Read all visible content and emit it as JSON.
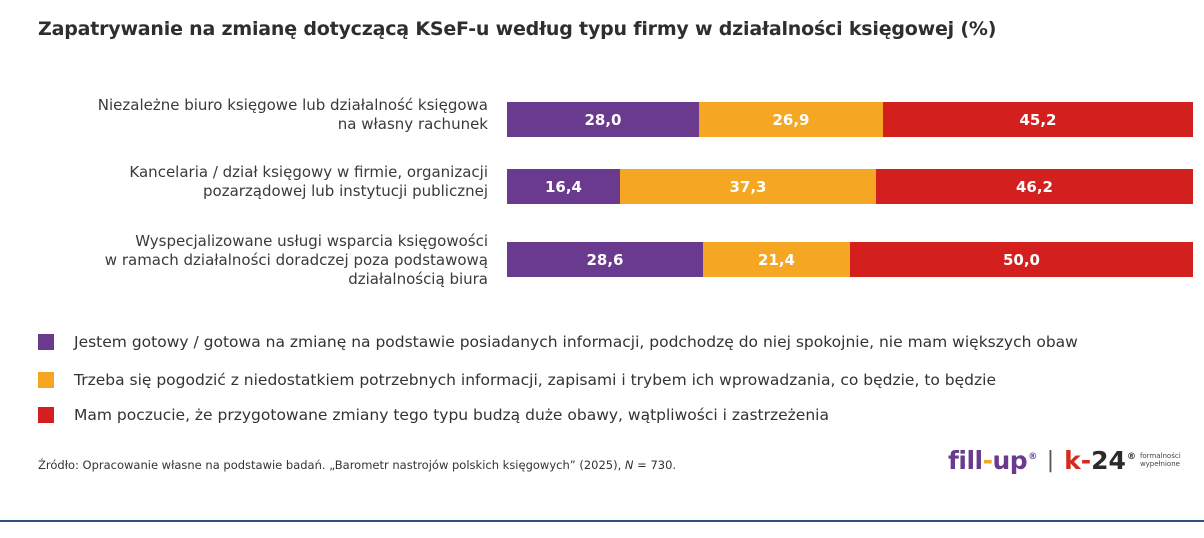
{
  "title": "Zapatrywanie na zmianę dotyczącą KSeF-u według typu firmy w działalności księgowej (%)",
  "colors": {
    "ready": "#6a3a8e",
    "resigned": "#f5a623",
    "concerns": "#d41f1f"
  },
  "chart_data": {
    "type": "bar",
    "orientation": "horizontal",
    "stacked": true,
    "title": "Zapatrywanie na zmianę dotyczącą KSeF-u według typu firmy w działalności księgowej (%)",
    "categories": [
      [
        "Niezależne biuro księgowe lub działalność księgowa",
        "na własny rachunek"
      ],
      [
        "Kancelaria / dział księgowy w firmie, organizacji",
        "pozarządowej lub instytucji publicznej"
      ],
      [
        "Wyspecjalizowane usługi wsparcia księgowości",
        "w ramach działalności doradczej poza podstawową",
        "działalnością biura"
      ]
    ],
    "series": [
      {
        "name": "Jestem gotowy / gotowa na zmianę na podstawie posiadanych informacji, podchodzę do niej spokojnie, nie mam większych obaw",
        "color": "#6a3a8e",
        "values": [
          28.0,
          16.4,
          28.6
        ],
        "labels": [
          "28,0",
          "16,4",
          "28,6"
        ]
      },
      {
        "name": "Trzeba się pogodzić z niedostatkiem potrzebnych informacji, zapisami i trybem ich wprowadzania, co będzie, to będzie",
        "color": "#f5a623",
        "values": [
          26.9,
          37.3,
          21.4
        ],
        "labels": [
          "26,9",
          "37,3",
          "21,4"
        ]
      },
      {
        "name": "Mam poczucie, że przygotowane zmiany tego typu budzą duże obawy, wątpliwości i zastrzeżenia",
        "color": "#d41f1f",
        "values": [
          45.2,
          46.2,
          50.0
        ],
        "labels": [
          "45,2",
          "46,2",
          "50,0"
        ]
      }
    ],
    "xlim": [
      0,
      100
    ],
    "legend_position": "bottom-left"
  },
  "source": {
    "prefix": "Źródło: Opracowanie własne na podstawie badań. „Barometr nastrojów polskich księgowych” (2025), ",
    "n_symbol": "N",
    "suffix": " = 730."
  },
  "logo": {
    "fillup_a": "fill",
    "fillup_dash": "-",
    "fillup_b": "up",
    "reg": "®",
    "sep": "|",
    "k24_k": "k",
    "k24_dash": "-",
    "k24_num": "24",
    "tag_1": "formalności",
    "tag_2": "wypełnione"
  }
}
